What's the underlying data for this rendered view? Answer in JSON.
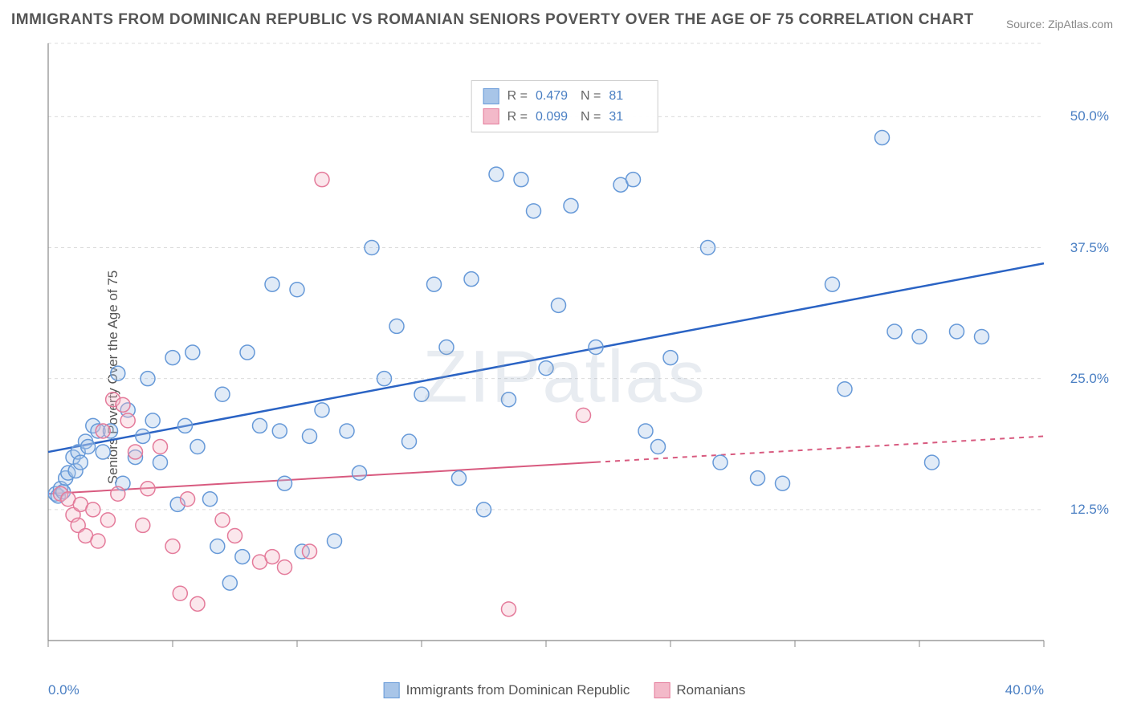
{
  "title": "IMMIGRANTS FROM DOMINICAN REPUBLIC VS ROMANIAN SENIORS POVERTY OVER THE AGE OF 75 CORRELATION CHART",
  "source": "Source: ZipAtlas.com",
  "watermark": "ZIPatlas",
  "y_axis_label": "Seniors Poverty Over the Age of 75",
  "chart": {
    "type": "scatter",
    "background_color": "#ffffff",
    "grid_color": "#dcdcdc",
    "axis_color": "#888888",
    "xlim": [
      0,
      40
    ],
    "ylim": [
      0,
      57
    ],
    "x_ticks": [
      0,
      20,
      40
    ],
    "x_tick_labels": [
      "0.0%",
      "",
      "40.0%"
    ],
    "y_ticks": [
      12.5,
      25.0,
      37.5,
      50.0
    ],
    "y_tick_labels": [
      "12.5%",
      "25.0%",
      "37.5%",
      "50.0%"
    ],
    "label_color": "#4a7fc3",
    "label_fontsize": 17,
    "marker_radius": 9,
    "marker_stroke_width": 1.5,
    "marker_fill_opacity": 0.35
  },
  "series": [
    {
      "id": "dr",
      "label": "Immigrants from Dominican Republic",
      "color_stroke": "#6699d8",
      "color_fill": "#a8c5e8",
      "R": "0.479",
      "N": "81",
      "trend": {
        "x1": 0,
        "y1": 18,
        "x2": 40,
        "y2": 36,
        "color": "#2a63c4",
        "width": 2.5,
        "dash_from_x": null
      },
      "points": [
        [
          0.3,
          14.0
        ],
        [
          0.4,
          13.8
        ],
        [
          0.5,
          14.5
        ],
        [
          0.6,
          14.2
        ],
        [
          0.7,
          15.5
        ],
        [
          0.8,
          16.0
        ],
        [
          1.0,
          17.5
        ],
        [
          1.1,
          16.2
        ],
        [
          1.2,
          18.0
        ],
        [
          1.3,
          17.0
        ],
        [
          1.5,
          19.0
        ],
        [
          1.6,
          18.5
        ],
        [
          1.8,
          20.5
        ],
        [
          2.0,
          20.0
        ],
        [
          2.2,
          18.0
        ],
        [
          2.5,
          20.0
        ],
        [
          2.8,
          25.5
        ],
        [
          3.0,
          15.0
        ],
        [
          3.2,
          22.0
        ],
        [
          3.5,
          17.5
        ],
        [
          3.8,
          19.5
        ],
        [
          4.0,
          25.0
        ],
        [
          4.2,
          21.0
        ],
        [
          4.5,
          17.0
        ],
        [
          5.0,
          27.0
        ],
        [
          5.2,
          13.0
        ],
        [
          5.5,
          20.5
        ],
        [
          5.8,
          27.5
        ],
        [
          6.0,
          18.5
        ],
        [
          6.5,
          13.5
        ],
        [
          6.8,
          9.0
        ],
        [
          7.0,
          23.5
        ],
        [
          7.3,
          5.5
        ],
        [
          7.8,
          8.0
        ],
        [
          8.0,
          27.5
        ],
        [
          8.5,
          20.5
        ],
        [
          9.0,
          34.0
        ],
        [
          9.3,
          20.0
        ],
        [
          9.5,
          15.0
        ],
        [
          10.0,
          33.5
        ],
        [
          10.2,
          8.5
        ],
        [
          10.5,
          19.5
        ],
        [
          11.0,
          22.0
        ],
        [
          11.5,
          9.5
        ],
        [
          12.0,
          20.0
        ],
        [
          12.5,
          16.0
        ],
        [
          13.0,
          37.5
        ],
        [
          13.5,
          25.0
        ],
        [
          14.0,
          30.0
        ],
        [
          14.5,
          19.0
        ],
        [
          15.0,
          23.5
        ],
        [
          15.5,
          34.0
        ],
        [
          16.0,
          28.0
        ],
        [
          16.5,
          15.5
        ],
        [
          17.0,
          34.5
        ],
        [
          17.5,
          12.5
        ],
        [
          18.0,
          44.5
        ],
        [
          18.5,
          23.0
        ],
        [
          19.0,
          44.0
        ],
        [
          19.5,
          41.0
        ],
        [
          20.0,
          26.0
        ],
        [
          20.5,
          32.0
        ],
        [
          21.0,
          41.5
        ],
        [
          22.0,
          28.0
        ],
        [
          23.0,
          43.5
        ],
        [
          23.5,
          44.0
        ],
        [
          24.0,
          20.0
        ],
        [
          24.5,
          18.5
        ],
        [
          25.0,
          27.0
        ],
        [
          26.5,
          37.5
        ],
        [
          27.0,
          17.0
        ],
        [
          28.5,
          15.5
        ],
        [
          29.5,
          15.0
        ],
        [
          31.5,
          34.0
        ],
        [
          32.0,
          24.0
        ],
        [
          33.5,
          48.0
        ],
        [
          35.0,
          29.0
        ],
        [
          35.5,
          17.0
        ],
        [
          36.5,
          29.5
        ],
        [
          34.0,
          29.5
        ],
        [
          37.5,
          29.0
        ]
      ]
    },
    {
      "id": "ro",
      "label": "Romanians",
      "color_stroke": "#e47a9a",
      "color_fill": "#f3b9c9",
      "R": "0.099",
      "N": "31",
      "trend": {
        "x1": 0,
        "y1": 14,
        "x2": 40,
        "y2": 19.5,
        "color": "#d85a7f",
        "width": 2,
        "dash_from_x": 22
      },
      "points": [
        [
          0.5,
          14.0
        ],
        [
          0.8,
          13.5
        ],
        [
          1.0,
          12.0
        ],
        [
          1.2,
          11.0
        ],
        [
          1.3,
          13.0
        ],
        [
          1.5,
          10.0
        ],
        [
          1.8,
          12.5
        ],
        [
          2.0,
          9.5
        ],
        [
          2.2,
          20.0
        ],
        [
          2.4,
          11.5
        ],
        [
          2.6,
          23.0
        ],
        [
          2.8,
          14.0
        ],
        [
          3.0,
          22.5
        ],
        [
          3.2,
          21.0
        ],
        [
          3.5,
          18.0
        ],
        [
          3.8,
          11.0
        ],
        [
          4.0,
          14.5
        ],
        [
          4.5,
          18.5
        ],
        [
          5.0,
          9.0
        ],
        [
          5.3,
          4.5
        ],
        [
          5.6,
          13.5
        ],
        [
          6.0,
          3.5
        ],
        [
          7.0,
          11.5
        ],
        [
          7.5,
          10.0
        ],
        [
          8.5,
          7.5
        ],
        [
          9.0,
          8.0
        ],
        [
          9.5,
          7.0
        ],
        [
          10.5,
          8.5
        ],
        [
          11.0,
          44.0
        ],
        [
          18.5,
          3.0
        ],
        [
          21.5,
          21.5
        ]
      ]
    }
  ],
  "top_legend": {
    "r_label": "R =",
    "n_label": "N ="
  },
  "bottom_legend": {
    "items": [
      {
        "label": "Immigrants from Dominican Republic",
        "fill": "#a8c5e8",
        "stroke": "#6699d8"
      },
      {
        "label": "Romanians",
        "fill": "#f3b9c9",
        "stroke": "#e47a9a"
      }
    ]
  }
}
